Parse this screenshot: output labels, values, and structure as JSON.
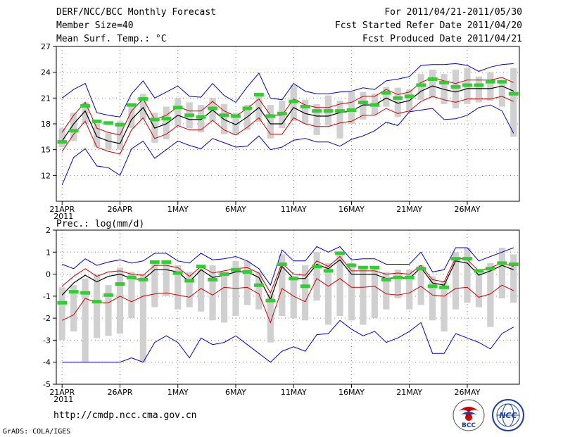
{
  "header": {
    "left": [
      "DERF/NCC/BCC Monthly Forecast",
      "Member Size=40",
      "Mean Surf. Temp.: °C"
    ],
    "right": [
      "For 2011/04/21-2011/05/30",
      "Fcst Started Refer Date 2011/04/20",
      "Fcst Produced Date 2011/04/21"
    ]
  },
  "panel2_title": "Prec.: log(mm/d)",
  "footer": {
    "url": "http://cmdp.ncc.cma.gov.cn",
    "credit": "GrADS: COLA/IGES"
  },
  "logos": {
    "bcc_text": "BCC",
    "ncc_text": "NCC"
  },
  "colors": {
    "mean": "#000000",
    "spread": "#cc0000",
    "extreme": "#0000cc",
    "box": "#d0d0d0",
    "obs": "#33cc33",
    "grid": "#808080"
  },
  "chart_data": [
    {
      "type": "line",
      "title": "Mean Surf. Temp.: °C",
      "x_ticks": [
        {
          "label": "21APR",
          "sub": "2011",
          "index": 0
        },
        {
          "label": "26APR",
          "index": 5
        },
        {
          "label": "1MAY",
          "index": 10
        },
        {
          "label": "6MAY",
          "index": 15
        },
        {
          "label": "11MAY",
          "index": 20
        },
        {
          "label": "16MAY",
          "index": 25
        },
        {
          "label": "21MAY",
          "index": 30
        },
        {
          "label": "26MAY",
          "index": 35
        }
      ],
      "xlim": [
        -0.5,
        39.5
      ],
      "ylim": [
        9,
        27
      ],
      "yticks": [
        12,
        15,
        18,
        21,
        24,
        27
      ],
      "grid": true,
      "series": [
        {
          "name": "mean",
          "values": [
            16.0,
            18.0,
            19.5,
            16.5,
            16.0,
            15.7,
            18.5,
            19.9,
            17.5,
            18.0,
            19.0,
            18.5,
            18.5,
            19.6,
            18.5,
            17.9,
            18.8,
            19.9,
            18.0,
            18.0,
            19.9,
            19.2,
            18.9,
            18.9,
            19.3,
            19.5,
            20.2,
            20.2,
            21.0,
            20.4,
            20.7,
            21.8,
            22.4,
            22.0,
            21.7,
            22.1,
            22.1,
            22.1,
            22.4,
            21.8
          ]
        },
        {
          "name": "upper spread",
          "values": [
            17.0,
            19.0,
            20.5,
            17.5,
            17.0,
            16.7,
            19.5,
            20.9,
            18.5,
            19.0,
            20.0,
            19.5,
            19.5,
            20.6,
            19.5,
            18.9,
            19.8,
            20.9,
            19.0,
            19.0,
            20.9,
            20.2,
            19.9,
            19.9,
            20.3,
            20.5,
            21.2,
            21.2,
            22.0,
            21.4,
            21.7,
            22.8,
            23.4,
            23.0,
            22.7,
            23.1,
            23.1,
            23.1,
            23.4,
            22.8
          ]
        },
        {
          "name": "lower spread",
          "values": [
            14.8,
            16.8,
            18.3,
            15.3,
            14.8,
            14.5,
            17.3,
            18.7,
            16.3,
            16.8,
            17.8,
            17.3,
            17.3,
            18.4,
            17.3,
            16.7,
            17.6,
            18.7,
            16.8,
            16.8,
            18.7,
            18.0,
            17.7,
            17.7,
            18.1,
            18.3,
            19.0,
            19.0,
            19.8,
            19.2,
            19.5,
            20.6,
            21.2,
            20.8,
            20.5,
            20.9,
            20.9,
            20.9,
            21.2,
            20.6
          ]
        },
        {
          "name": "max",
          "values": [
            21.0,
            22.0,
            22.7,
            19.3,
            19.0,
            18.8,
            21.5,
            23.0,
            21.0,
            21.7,
            22.4,
            21.2,
            21.1,
            22.7,
            21.3,
            20.5,
            22.3,
            23.9,
            21.0,
            20.8,
            22.7,
            21.8,
            21.5,
            21.5,
            21.7,
            21.8,
            22.2,
            22.0,
            23.0,
            23.2,
            23.5,
            24.8,
            24.9,
            24.9,
            25.0,
            24.8,
            24.1,
            24.6,
            24.9,
            25.0
          ]
        },
        {
          "name": "min",
          "values": [
            10.9,
            14.1,
            15.1,
            13.1,
            12.9,
            12.0,
            15.1,
            16.0,
            14.0,
            15.0,
            16.0,
            15.5,
            15.1,
            16.3,
            15.8,
            15.3,
            15.4,
            16.6,
            15.0,
            15.3,
            16.1,
            16.3,
            15.9,
            15.9,
            15.4,
            16.2,
            16.6,
            17.2,
            18.2,
            17.8,
            19.4,
            19.6,
            19.8,
            18.5,
            18.6,
            19.0,
            19.9,
            20.2,
            19.5,
            16.9
          ]
        }
      ],
      "box_ranges": [
        [
          15.3,
          17.5
        ],
        [
          16.0,
          19.3
        ],
        [
          18.0,
          20.5
        ],
        [
          15.3,
          18.0
        ],
        [
          15.0,
          17.0
        ],
        [
          15.0,
          18.3
        ],
        [
          17.5,
          20.3
        ],
        [
          18.5,
          21.5
        ],
        [
          15.8,
          19.3
        ],
        [
          16.2,
          20.0
        ],
        [
          17.7,
          21.0
        ],
        [
          17.5,
          20.5
        ],
        [
          17.0,
          20.2
        ],
        [
          18.3,
          21.0
        ],
        [
          16.8,
          20.3
        ],
        [
          16.7,
          19.3
        ],
        [
          17.3,
          20.2
        ],
        [
          18.2,
          21.5
        ],
        [
          16.3,
          20.2
        ],
        [
          17.5,
          20.7
        ],
        [
          18.3,
          22.5
        ],
        [
          18.0,
          20.8
        ],
        [
          16.7,
          20.3
        ],
        [
          17.8,
          21.3
        ],
        [
          16.3,
          20.7
        ],
        [
          18.0,
          21.7
        ],
        [
          18.5,
          21.7
        ],
        [
          19.0,
          21.5
        ],
        [
          20.0,
          22.3
        ],
        [
          18.8,
          22.2
        ],
        [
          19.5,
          22.0
        ],
        [
          20.8,
          23.8
        ],
        [
          21.0,
          24.3
        ],
        [
          20.3,
          23.8
        ],
        [
          19.8,
          24.3
        ],
        [
          20.3,
          24.5
        ],
        [
          20.5,
          23.5
        ],
        [
          20.7,
          24.0
        ],
        [
          20.0,
          23.0
        ],
        [
          16.5,
          24.5
        ]
      ],
      "observed": [
        15.9,
        17.2,
        20.1,
        18.3,
        18.1,
        17.9,
        20.2,
        20.9,
        18.5,
        18.6,
        19.9,
        19.0,
        18.8,
        19.8,
        19.0,
        18.9,
        19.8,
        21.4,
        18.9,
        19.2,
        20.6,
        20.0,
        19.5,
        19.5,
        19.5,
        19.6,
        20.5,
        20.2,
        21.6,
        21.0,
        21.2,
        22.5,
        23.2,
        22.8,
        22.3,
        22.5,
        22.5,
        22.9,
        22.9,
        21.5
      ]
    },
    {
      "type": "line",
      "title": "Prec.: log(mm/d)",
      "x_ticks": [
        {
          "label": "21APR",
          "sub": "2011",
          "index": 0
        },
        {
          "label": "26APR",
          "index": 5
        },
        {
          "label": "1MAY",
          "index": 10
        },
        {
          "label": "6MAY",
          "index": 15
        },
        {
          "label": "11MAY",
          "index": 20
        },
        {
          "label": "16MAY",
          "index": 25
        },
        {
          "label": "21MAY",
          "index": 30
        },
        {
          "label": "26MAY",
          "index": 35
        }
      ],
      "xlim": [
        -0.5,
        39.5
      ],
      "ylim": [
        -5,
        2
      ],
      "yticks": [
        -5,
        -4,
        -3,
        -2,
        -1,
        0,
        1,
        2
      ],
      "grid": true,
      "series": [
        {
          "name": "mean",
          "values": [
            -0.95,
            -0.4,
            -0.05,
            -0.35,
            -0.1,
            0.0,
            -0.2,
            -0.25,
            0.2,
            0.2,
            0.1,
            -0.35,
            0.2,
            -0.15,
            -0.05,
            0.1,
            0.1,
            -0.15,
            -1.15,
            0.35,
            -0.2,
            -0.2,
            0.45,
            0.25,
            0.65,
            0.0,
            0.0,
            0.0,
            -0.2,
            -0.15,
            -0.2,
            0.3,
            -0.4,
            -0.5,
            0.6,
            0.5,
            -0.05,
            0.15,
            0.4,
            0.2
          ]
        },
        {
          "name": "upper spread",
          "values": [
            -0.55,
            -0.1,
            0.25,
            -0.1,
            0.1,
            0.15,
            0.0,
            -0.05,
            0.4,
            0.4,
            0.3,
            -0.1,
            0.35,
            0.05,
            0.15,
            0.25,
            0.3,
            0.05,
            -0.85,
            0.5,
            0.0,
            -0.05,
            0.6,
            0.35,
            0.8,
            0.15,
            0.15,
            0.15,
            0.0,
            0.05,
            0.0,
            0.4,
            -0.25,
            -0.35,
            0.75,
            0.65,
            0.15,
            0.3,
            0.5,
            0.35
          ]
        },
        {
          "name": "lower spread",
          "values": [
            -2.1,
            -1.85,
            -1.1,
            -1.3,
            -1.3,
            -1.0,
            -1.25,
            -1.0,
            -0.9,
            -0.85,
            -0.95,
            -1.05,
            -0.65,
            -0.95,
            -0.6,
            -0.65,
            -0.6,
            -0.9,
            -2.2,
            -0.65,
            -1.0,
            -1.25,
            -0.2,
            -0.55,
            -0.2,
            -0.6,
            -0.6,
            -0.55,
            -0.9,
            -0.95,
            -0.85,
            -0.55,
            -0.95,
            -1.0,
            -0.65,
            -0.6,
            -1.05,
            -0.9,
            -0.5,
            -0.75
          ]
        },
        {
          "name": "max",
          "values": [
            0.45,
            0.25,
            0.7,
            0.4,
            0.55,
            0.65,
            0.5,
            0.6,
            0.95,
            0.95,
            0.6,
            0.5,
            0.95,
            0.65,
            0.7,
            0.8,
            0.6,
            0.25,
            -0.5,
            1.1,
            0.6,
            0.6,
            1.25,
            1.0,
            1.25,
            0.65,
            0.7,
            0.7,
            0.45,
            0.45,
            0.45,
            1.0,
            0.1,
            0.2,
            1.2,
            1.2,
            0.6,
            0.8,
            1.0,
            1.2
          ]
        },
        {
          "name": "min",
          "values": [
            -4.0,
            -4.0,
            -4.0,
            -4.0,
            -4.0,
            -4.0,
            -3.8,
            -4.0,
            -3.1,
            -2.8,
            -3.1,
            -3.8,
            -2.9,
            -3.2,
            -3.1,
            -2.8,
            -3.2,
            -3.6,
            -4.0,
            -3.5,
            -3.3,
            -3.5,
            -2.75,
            -2.7,
            -2.1,
            -2.5,
            -2.8,
            -2.6,
            -3.1,
            -2.9,
            -2.6,
            -2.2,
            -3.6,
            -3.6,
            -2.7,
            -2.9,
            -3.1,
            -3.4,
            -2.7,
            -2.4
          ]
        },
        {
          "name": "max tail",
          "values": []
        }
      ],
      "box_ranges": [
        [
          -3.0,
          -0.6
        ],
        [
          -2.6,
          -0.5
        ],
        [
          -4.0,
          -0.2
        ],
        [
          -2.9,
          0.0
        ],
        [
          -2.8,
          -0.5
        ],
        [
          -2.7,
          0.3
        ],
        [
          -2.0,
          0.1
        ],
        [
          -4.0,
          0.0
        ],
        [
          -1.5,
          0.6
        ],
        [
          -1.0,
          0.6
        ],
        [
          -1.6,
          0.4
        ],
        [
          -1.5,
          0.1
        ],
        [
          -1.7,
          0.3
        ],
        [
          -2.1,
          0.4
        ],
        [
          -2.2,
          0.1
        ],
        [
          -1.9,
          0.6
        ],
        [
          -1.4,
          0.6
        ],
        [
          -1.6,
          0.1
        ],
        [
          -3.1,
          -0.9
        ],
        [
          -1.9,
          0.9
        ],
        [
          -2.0,
          -0.1
        ],
        [
          -2.1,
          0.4
        ],
        [
          -1.2,
          1.0
        ],
        [
          -2.3,
          0.5
        ],
        [
          -1.9,
          1.0
        ],
        [
          -2.1,
          0.5
        ],
        [
          -2.3,
          0.3
        ],
        [
          -2.0,
          0.3
        ],
        [
          -1.6,
          0.1
        ],
        [
          -1.1,
          0.2
        ],
        [
          -1.6,
          0.2
        ],
        [
          -1.4,
          0.4
        ],
        [
          -2.1,
          -0.1
        ],
        [
          -2.6,
          -0.3
        ],
        [
          -1.6,
          1.0
        ],
        [
          -1.3,
          1.2
        ],
        [
          -1.5,
          0.2
        ],
        [
          -2.4,
          0.5
        ],
        [
          -1.1,
          1.2
        ],
        [
          -1.3,
          0.9
        ]
      ],
      "observed": [
        -1.3,
        -0.8,
        -0.85,
        -1.25,
        -0.95,
        -0.45,
        -0.15,
        -0.25,
        0.55,
        0.55,
        0.05,
        -0.3,
        0.35,
        -0.25,
        0.0,
        0.2,
        0.1,
        -0.5,
        -1.2,
        0.45,
        -0.2,
        -0.55,
        0.35,
        0.15,
        0.95,
        0.4,
        0.3,
        0.3,
        -0.25,
        -0.15,
        -0.15,
        0.25,
        -0.55,
        -0.6,
        0.7,
        0.7,
        0.15,
        0.25,
        0.5,
        0.45
      ]
    }
  ]
}
